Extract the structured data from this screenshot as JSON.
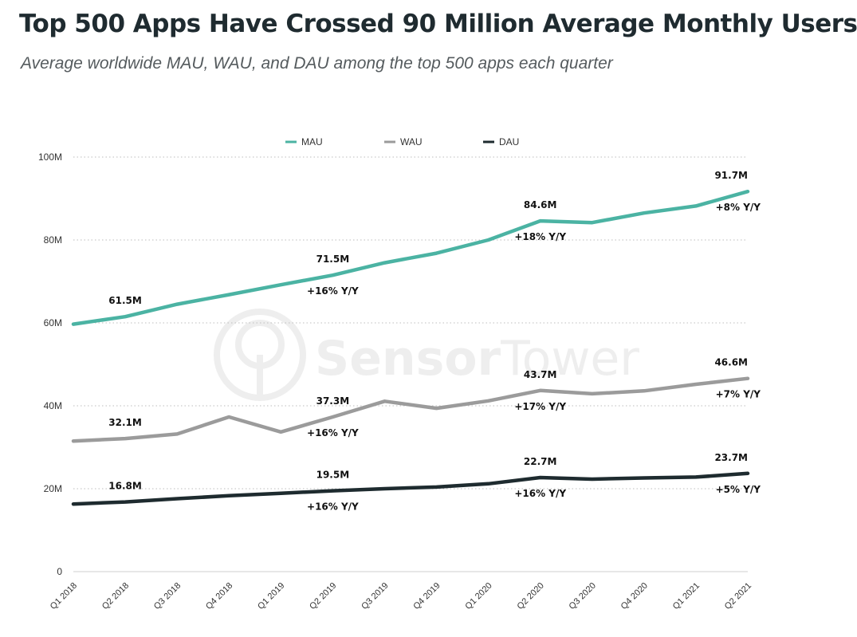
{
  "header": {
    "title": "Top 500 Apps Have Crossed 90 Million Average Monthly Users",
    "subtitle": "Average worldwide MAU, WAU, and DAU among the top 500 apps each quarter"
  },
  "watermark": {
    "text_a": "Sensor",
    "text_b": "Tower"
  },
  "chart_data": {
    "type": "line",
    "title": "Top 500 Apps Have Crossed 90 Million Average Monthly Users",
    "subtitle": "Average worldwide MAU, WAU, and DAU among the top 500 apps each quarter",
    "xlabel": "",
    "ylabel": "",
    "ylim": [
      0,
      100
    ],
    "grid": true,
    "legend_position": "top-center",
    "yticks": [
      {
        "value": 0,
        "label": "0"
      },
      {
        "value": 20,
        "label": "20M"
      },
      {
        "value": 40,
        "label": "40M"
      },
      {
        "value": 60,
        "label": "60M"
      },
      {
        "value": 80,
        "label": "80M"
      },
      {
        "value": 100,
        "label": "100M"
      }
    ],
    "categories": [
      "Q1 2018",
      "Q2 2018",
      "Q3 2018",
      "Q4 2018",
      "Q1 2019",
      "Q2 2019",
      "Q3 2019",
      "Q4 2019",
      "Q1 2020",
      "Q2 2020",
      "Q3 2020",
      "Q4 2020",
      "Q1 2021",
      "Q2 2021"
    ],
    "series": [
      {
        "name": "MAU",
        "color": "#4bb3a3",
        "values": [
          59.7,
          61.5,
          64.5,
          66.8,
          69.2,
          71.5,
          74.5,
          76.8,
          80.0,
          84.6,
          84.2,
          86.5,
          88.2,
          91.7
        ]
      },
      {
        "name": "WAU",
        "color": "#9b9b9b",
        "values": [
          31.5,
          32.1,
          33.2,
          37.3,
          33.7,
          37.3,
          41.1,
          39.4,
          41.2,
          43.7,
          42.9,
          43.6,
          45.2,
          46.6
        ]
      },
      {
        "name": "DAU",
        "color": "#1e2b2f",
        "values": [
          16.3,
          16.8,
          17.6,
          18.3,
          18.9,
          19.5,
          20.0,
          20.4,
          21.2,
          22.7,
          22.3,
          22.6,
          22.8,
          23.7
        ]
      }
    ],
    "annotations": [
      {
        "series": "MAU",
        "index": 1,
        "value_label": "61.5M",
        "growth": ""
      },
      {
        "series": "MAU",
        "index": 5,
        "value_label": "71.5M",
        "growth": "+16% Y/Y"
      },
      {
        "series": "MAU",
        "index": 9,
        "value_label": "84.6M",
        "growth": "+18% Y/Y"
      },
      {
        "series": "MAU",
        "index": 13,
        "value_label": "91.7M",
        "growth": "+8% Y/Y"
      },
      {
        "series": "WAU",
        "index": 1,
        "value_label": "32.1M",
        "growth": ""
      },
      {
        "series": "WAU",
        "index": 5,
        "value_label": "37.3M",
        "growth": "+16% Y/Y"
      },
      {
        "series": "WAU",
        "index": 9,
        "value_label": "43.7M",
        "growth": "+17% Y/Y"
      },
      {
        "series": "WAU",
        "index": 13,
        "value_label": "46.6M",
        "growth": "+7% Y/Y"
      },
      {
        "series": "DAU",
        "index": 1,
        "value_label": "16.8M",
        "growth": ""
      },
      {
        "series": "DAU",
        "index": 5,
        "value_label": "19.5M",
        "growth": "+16% Y/Y"
      },
      {
        "series": "DAU",
        "index": 9,
        "value_label": "22.7M",
        "growth": "+16% Y/Y"
      },
      {
        "series": "DAU",
        "index": 13,
        "value_label": "23.7M",
        "growth": "+5% Y/Y"
      }
    ]
  }
}
